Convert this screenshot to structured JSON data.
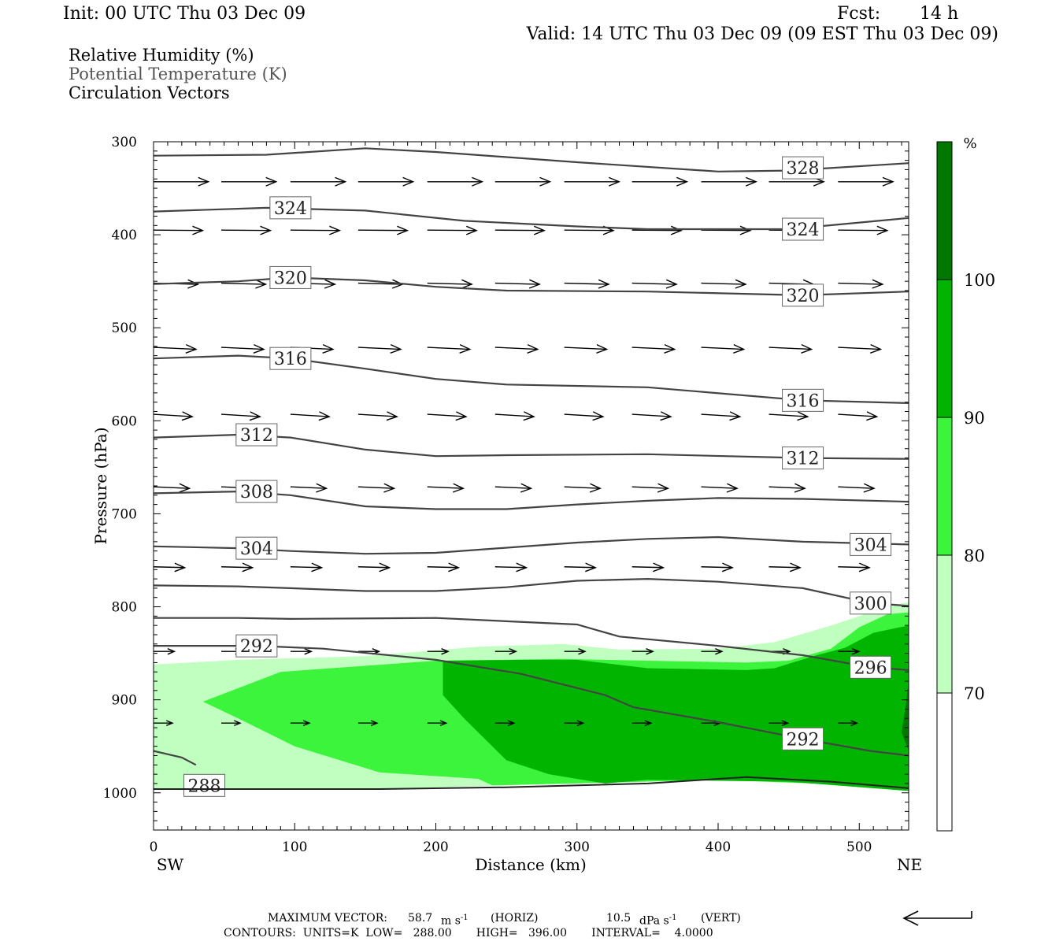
{
  "header": {
    "init": "Init: 00 UTC Thu 03 Dec 09",
    "fcst_label": "Fcst:",
    "fcst_value": "14 h",
    "valid": "Valid: 14 UTC Thu 03 Dec 09 (09 EST Thu 03 Dec 09)"
  },
  "legend": {
    "line1": "Relative Humidity (%)",
    "line2": "Potential Temperature (K)",
    "line3": "Circulation Vectors"
  },
  "footer": {
    "max_vector_label": "MAXIMUM VECTOR:",
    "horiz_value": "58.7",
    "horiz_unit": "m s",
    "horiz_sup": "-1",
    "horiz_tag": "(HORIZ)",
    "vert_value": "10.5",
    "vert_unit": "dPa s",
    "vert_sup": "-1",
    "vert_tag": "(VERT)",
    "contours_line": "CONTOURS:  UNITS=K  LOW=   288.00       HIGH=   396.00       INTERVAL=    4.0000"
  },
  "colors": {
    "rh70": "#c0ffc0",
    "rh80": "#3cf43c",
    "rh90": "#00b400",
    "rh100": "#007800",
    "theta_line": "#444444"
  },
  "chart_data": {
    "type": "cross-section",
    "xlabel": "Distance (km)",
    "ylabel": "Pressure (hPa)",
    "x_ticks": [
      0,
      100,
      200,
      300,
      400,
      500
    ],
    "y_ticks": [
      300,
      400,
      500,
      600,
      700,
      800,
      900,
      1000
    ],
    "xlim": [
      0,
      535
    ],
    "ylim": [
      1040,
      300
    ],
    "x_end_labels": {
      "left": "SW",
      "right": "NE"
    },
    "colorbar": {
      "unit": "%",
      "levels": [
        70,
        80,
        90,
        100
      ],
      "colors": [
        "#ffffff",
        "#c0ffc0",
        "#3cf43c",
        "#00b400",
        "#007800"
      ]
    },
    "rh_regions": [
      {
        "level": 70,
        "color": "#c0ffc0",
        "points": [
          [
            0,
            862
          ],
          [
            60,
            857
          ],
          [
            150,
            853
          ],
          [
            230,
            843
          ],
          [
            290,
            840
          ],
          [
            330,
            846
          ],
          [
            400,
            845
          ],
          [
            440,
            838
          ],
          [
            480,
            820
          ],
          [
            520,
            800
          ],
          [
            535,
            795
          ],
          [
            535,
            990
          ],
          [
            450,
            985
          ],
          [
            350,
            987
          ],
          [
            250,
            992
          ],
          [
            160,
            996
          ],
          [
            80,
            996
          ],
          [
            0,
            996
          ]
        ]
      },
      {
        "level": 80,
        "color": "#3cf43c",
        "points": [
          [
            35,
            902
          ],
          [
            90,
            870
          ],
          [
            200,
            858
          ],
          [
            290,
            856
          ],
          [
            350,
            858
          ],
          [
            420,
            860
          ],
          [
            450,
            858
          ],
          [
            480,
            845
          ],
          [
            500,
            822
          ],
          [
            520,
            808
          ],
          [
            535,
            806
          ],
          [
            535,
            994
          ],
          [
            400,
            986
          ],
          [
            300,
            990
          ],
          [
            240,
            992
          ],
          [
            230,
            985
          ],
          [
            160,
            978
          ],
          [
            100,
            950
          ],
          [
            60,
            920
          ]
        ]
      },
      {
        "level": 90,
        "color": "#00b400",
        "points": [
          [
            205,
            858
          ],
          [
            260,
            857
          ],
          [
            300,
            857
          ],
          [
            350,
            866
          ],
          [
            420,
            868
          ],
          [
            440,
            866
          ],
          [
            470,
            852
          ],
          [
            490,
            844
          ],
          [
            510,
            828
          ],
          [
            535,
            820
          ],
          [
            535,
            998
          ],
          [
            450,
            988
          ],
          [
            350,
            986
          ],
          [
            320,
            990
          ],
          [
            280,
            980
          ],
          [
            250,
            965
          ],
          [
            220,
            920
          ],
          [
            205,
            895
          ]
        ]
      },
      {
        "level": 100,
        "color": "#007800",
        "points": [
          [
            535,
            880
          ],
          [
            533,
            905
          ],
          [
            530,
            935
          ],
          [
            535,
            955
          ]
        ]
      }
    ],
    "theta_contours": [
      {
        "value": 328,
        "points": [
          [
            0,
            315
          ],
          [
            80,
            314
          ],
          [
            150,
            307
          ],
          [
            200,
            311
          ],
          [
            300,
            322
          ],
          [
            400,
            332
          ],
          [
            450,
            331
          ],
          [
            535,
            323
          ]
        ],
        "labels": [
          [
            460,
            328
          ]
        ]
      },
      {
        "value": 324,
        "points": [
          [
            0,
            375
          ],
          [
            80,
            371
          ],
          [
            150,
            374
          ],
          [
            220,
            385
          ],
          [
            300,
            391
          ],
          [
            350,
            394
          ],
          [
            450,
            394
          ],
          [
            535,
            382
          ]
        ],
        "labels": [
          [
            97,
            371
          ],
          [
            460,
            394
          ]
        ]
      },
      {
        "value": 320,
        "points": [
          [
            0,
            453
          ],
          [
            60,
            450
          ],
          [
            97,
            446
          ],
          [
            150,
            449
          ],
          [
            200,
            456
          ],
          [
            250,
            460
          ],
          [
            350,
            461
          ],
          [
            460,
            465
          ],
          [
            535,
            461
          ]
        ],
        "labels": [
          [
            97,
            446
          ],
          [
            460,
            465
          ]
        ]
      },
      {
        "value": 316,
        "points": [
          [
            0,
            533
          ],
          [
            60,
            530
          ],
          [
            97,
            533
          ],
          [
            150,
            544
          ],
          [
            200,
            555
          ],
          [
            250,
            561
          ],
          [
            350,
            564
          ],
          [
            460,
            578
          ],
          [
            535,
            581
          ]
        ],
        "labels": [
          [
            97,
            533
          ],
          [
            460,
            578
          ]
        ]
      },
      {
        "value": 312,
        "points": [
          [
            0,
            618
          ],
          [
            60,
            615
          ],
          [
            97,
            618
          ],
          [
            150,
            631
          ],
          [
            200,
            638
          ],
          [
            250,
            637
          ],
          [
            350,
            636
          ],
          [
            460,
            640
          ],
          [
            535,
            641
          ]
        ],
        "labels": [
          [
            73,
            615
          ],
          [
            460,
            640
          ]
        ]
      },
      {
        "value": 308,
        "points": [
          [
            0,
            678
          ],
          [
            60,
            676
          ],
          [
            97,
            680
          ],
          [
            150,
            692
          ],
          [
            200,
            695
          ],
          [
            250,
            695
          ],
          [
            300,
            690
          ],
          [
            350,
            686
          ],
          [
            400,
            683
          ],
          [
            460,
            684
          ],
          [
            535,
            687
          ]
        ],
        "labels": [
          [
            73,
            676
          ]
        ]
      },
      {
        "value": 304,
        "points": [
          [
            0,
            735
          ],
          [
            60,
            737
          ],
          [
            97,
            740
          ],
          [
            150,
            743
          ],
          [
            200,
            742
          ],
          [
            300,
            731
          ],
          [
            350,
            727
          ],
          [
            400,
            725
          ],
          [
            460,
            730
          ],
          [
            535,
            733
          ]
        ],
        "labels": [
          [
            73,
            737
          ],
          [
            508,
            733
          ]
        ]
      },
      {
        "value": 300,
        "points": [
          [
            0,
            777
          ],
          [
            60,
            778
          ],
          [
            97,
            780
          ],
          [
            150,
            783
          ],
          [
            200,
            783
          ],
          [
            250,
            779
          ],
          [
            300,
            772
          ],
          [
            350,
            770
          ],
          [
            400,
            773
          ],
          [
            460,
            780
          ],
          [
            508,
            796
          ],
          [
            535,
            799
          ]
        ],
        "labels": [
          [
            508,
            796
          ]
        ]
      },
      {
        "value": 296,
        "points": [
          [
            0,
            812
          ],
          [
            60,
            812
          ],
          [
            97,
            813
          ],
          [
            200,
            812
          ],
          [
            300,
            819
          ],
          [
            330,
            832
          ],
          [
            400,
            842
          ],
          [
            460,
            852
          ],
          [
            508,
            865
          ],
          [
            535,
            868
          ]
        ],
        "labels": [
          [
            508,
            865
          ]
        ]
      },
      {
        "value": 292,
        "points": [
          [
            0,
            842
          ],
          [
            73,
            842
          ],
          [
            120,
            845
          ],
          [
            200,
            857
          ],
          [
            260,
            872
          ],
          [
            320,
            895
          ],
          [
            340,
            908
          ],
          [
            400,
            924
          ],
          [
            440,
            936
          ],
          [
            460,
            942
          ],
          [
            508,
            955
          ],
          [
            535,
            960
          ]
        ],
        "labels": [
          [
            73,
            842
          ],
          [
            460,
            942
          ]
        ]
      },
      {
        "value": 288,
        "points": [
          [
            0,
            955
          ],
          [
            20,
            962
          ],
          [
            30,
            970
          ]
        ],
        "labels": [
          [
            36,
            992
          ]
        ]
      }
    ],
    "surface_line": [
      [
        0,
        996
      ],
      [
        80,
        996
      ],
      [
        160,
        996
      ],
      [
        250,
        994
      ],
      [
        350,
        990
      ],
      [
        420,
        983
      ],
      [
        480,
        988
      ],
      [
        535,
        995
      ]
    ],
    "vector_rows": [
      {
        "p": 343,
        "len": 0.58,
        "tilt": 0
      },
      {
        "p": 395,
        "len": 0.52,
        "tilt": 0.5
      },
      {
        "p": 452,
        "len": 0.47,
        "tilt": 1.5
      },
      {
        "p": 521,
        "len": 0.45,
        "tilt": 2.5
      },
      {
        "p": 593,
        "len": 0.41,
        "tilt": 3
      },
      {
        "p": 671,
        "len": 0.38,
        "tilt": 2
      },
      {
        "p": 757,
        "len": 0.33,
        "tilt": 1
      },
      {
        "p": 848,
        "len": 0.22,
        "tilt": 0
      },
      {
        "p": 925,
        "len": 0.2,
        "tilt": 0
      }
    ],
    "vector_x": [
      0,
      48,
      97,
      145,
      194,
      242,
      291,
      339,
      388,
      436,
      485
    ]
  }
}
